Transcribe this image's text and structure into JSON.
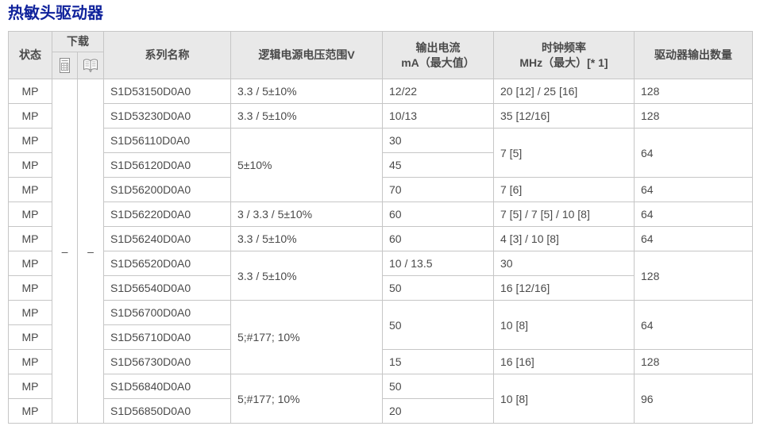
{
  "page": {
    "title": "热敏头驱动器"
  },
  "colors": {
    "title_text": "#10239c",
    "header_bg": "#e9e9e9",
    "border": "#c6c6c6",
    "body_text": "#4a4a4a",
    "icon_gray": "#888888"
  },
  "table": {
    "headers": {
      "status": "状态",
      "download": "下载",
      "download_icons": [
        {
          "name": "document-icon"
        },
        {
          "name": "open-book-icon"
        }
      ],
      "series": "系列名称",
      "voltage": "逻辑电源电压范围V",
      "current": {
        "line1": "输出电流",
        "line2": "mA（最大值）"
      },
      "clock": {
        "line1": "时钟频率",
        "line2": "MHz（最大）[* 1]"
      },
      "outputs": "驱动器输出数量"
    },
    "body_rows": [
      [
        {
          "n": "status",
          "t": "MP",
          "c": 1
        },
        {
          "n": "download-dash",
          "t": "–",
          "c": 1,
          "rs": 14
        },
        {
          "n": "download-dash",
          "t": "–",
          "c": 1,
          "rs": 14
        },
        {
          "n": "series",
          "t": "S1D53150D0A0"
        },
        {
          "n": "voltage",
          "t": "3.3 / 5±10%"
        },
        {
          "n": "current",
          "t": "12/22"
        },
        {
          "n": "clock",
          "t": "20 [12] / 25 [16]"
        },
        {
          "n": "outputs",
          "t": "128"
        }
      ],
      [
        {
          "n": "status",
          "t": "MP",
          "c": 1
        },
        {
          "n": "series",
          "t": "S1D53230D0A0"
        },
        {
          "n": "voltage",
          "t": "3.3 / 5±10%"
        },
        {
          "n": "current",
          "t": "10/13"
        },
        {
          "n": "clock",
          "t": "35 [12/16]"
        },
        {
          "n": "outputs",
          "t": "128"
        }
      ],
      [
        {
          "n": "status",
          "t": "MP",
          "c": 1
        },
        {
          "n": "series",
          "t": "S1D56110D0A0"
        },
        {
          "n": "voltage",
          "t": "5±10%",
          "rs": 3
        },
        {
          "n": "current",
          "t": "30"
        },
        {
          "n": "clock",
          "t": "7 [5]",
          "rs": 2
        },
        {
          "n": "outputs",
          "t": "64",
          "rs": 2
        }
      ],
      [
        {
          "n": "status",
          "t": "MP",
          "c": 1
        },
        {
          "n": "series",
          "t": "S1D56120D0A0"
        },
        {
          "n": "current",
          "t": "45"
        }
      ],
      [
        {
          "n": "status",
          "t": "MP",
          "c": 1
        },
        {
          "n": "series",
          "t": "S1D56200D0A0"
        },
        {
          "n": "current",
          "t": "70"
        },
        {
          "n": "clock",
          "t": "7 [6]"
        },
        {
          "n": "outputs",
          "t": "64"
        }
      ],
      [
        {
          "n": "status",
          "t": "MP",
          "c": 1
        },
        {
          "n": "series",
          "t": "S1D56220D0A0"
        },
        {
          "n": "voltage",
          "t": "3 / 3.3 / 5±10%"
        },
        {
          "n": "current",
          "t": "60"
        },
        {
          "n": "clock",
          "t": "7 [5] / 7 [5] / 10 [8]"
        },
        {
          "n": "outputs",
          "t": "64"
        }
      ],
      [
        {
          "n": "status",
          "t": "MP",
          "c": 1
        },
        {
          "n": "series",
          "t": "S1D56240D0A0"
        },
        {
          "n": "voltage",
          "t": "3.3 / 5±10%"
        },
        {
          "n": "current",
          "t": "60"
        },
        {
          "n": "clock",
          "t": "4 [3] / 10 [8]"
        },
        {
          "n": "outputs",
          "t": "64"
        }
      ],
      [
        {
          "n": "status",
          "t": "MP",
          "c": 1
        },
        {
          "n": "series",
          "t": "S1D56520D0A0"
        },
        {
          "n": "voltage",
          "t": "3.3 / 5±10%",
          "rs": 2
        },
        {
          "n": "current",
          "t": "10 / 13.5"
        },
        {
          "n": "clock",
          "t": "30"
        },
        {
          "n": "outputs",
          "t": "128",
          "rs": 2
        }
      ],
      [
        {
          "n": "status",
          "t": "MP",
          "c": 1
        },
        {
          "n": "series",
          "t": "S1D56540D0A0"
        },
        {
          "n": "current",
          "t": "50"
        },
        {
          "n": "clock",
          "t": "16 [12/16]"
        }
      ],
      [
        {
          "n": "status",
          "t": "MP",
          "c": 1
        },
        {
          "n": "series",
          "t": "S1D56700D0A0"
        },
        {
          "n": "voltage",
          "t": "5;#177; 10%",
          "rs": 3
        },
        {
          "n": "current",
          "t": "50",
          "rs": 2
        },
        {
          "n": "clock",
          "t": "10 [8]",
          "rs": 2
        },
        {
          "n": "outputs",
          "t": "64",
          "rs": 2
        }
      ],
      [
        {
          "n": "status",
          "t": "MP",
          "c": 1
        },
        {
          "n": "series",
          "t": "S1D56710D0A0"
        }
      ],
      [
        {
          "n": "status",
          "t": "MP",
          "c": 1
        },
        {
          "n": "series",
          "t": "S1D56730D0A0"
        },
        {
          "n": "current",
          "t": "15"
        },
        {
          "n": "clock",
          "t": "16 [16]"
        },
        {
          "n": "outputs",
          "t": "128"
        }
      ],
      [
        {
          "n": "status",
          "t": "MP",
          "c": 1
        },
        {
          "n": "series",
          "t": "S1D56840D0A0"
        },
        {
          "n": "voltage",
          "t": "5;#177; 10%",
          "rs": 2
        },
        {
          "n": "current",
          "t": "50"
        },
        {
          "n": "clock",
          "t": "10 [8]",
          "rs": 2
        },
        {
          "n": "outputs",
          "t": "96",
          "rs": 2
        }
      ],
      [
        {
          "n": "status",
          "t": "MP",
          "c": 1
        },
        {
          "n": "series",
          "t": "S1D56850D0A0"
        },
        {
          "n": "current",
          "t": "20"
        }
      ]
    ]
  }
}
